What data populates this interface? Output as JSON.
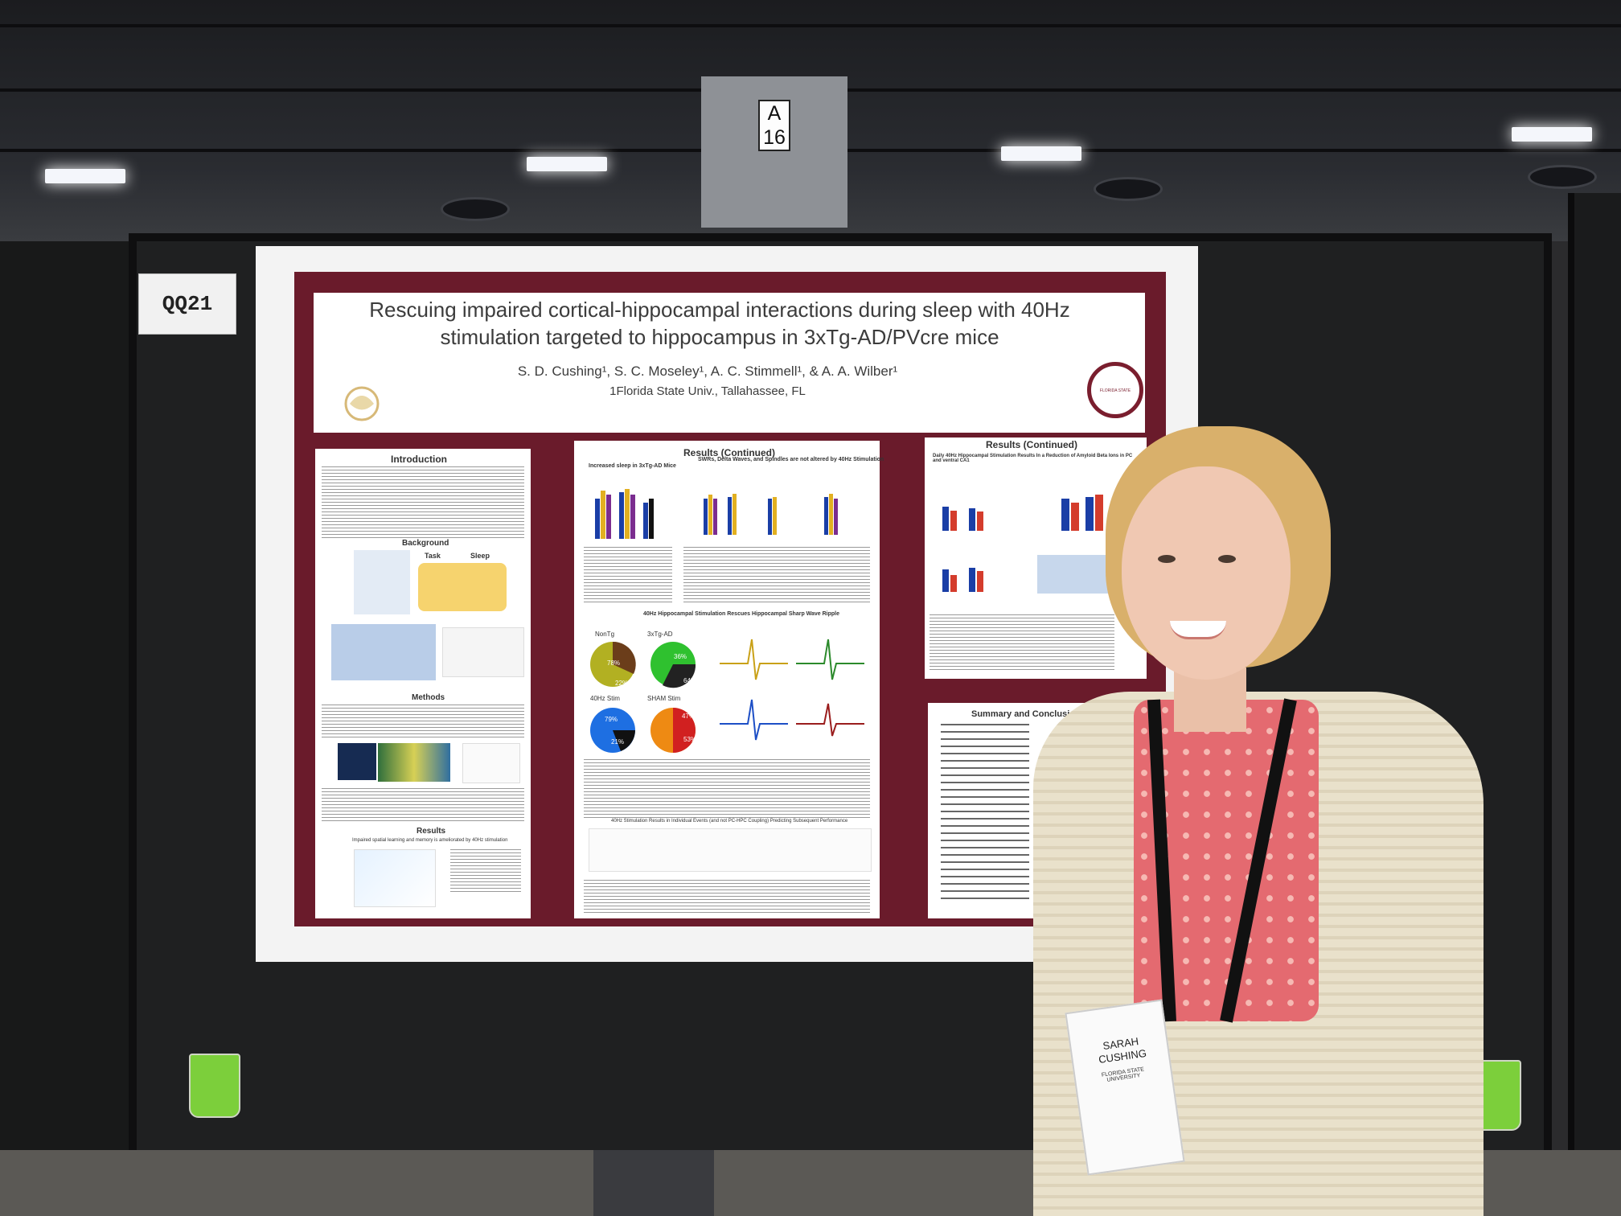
{
  "aisle_sign": {
    "letter": "A",
    "number": "16"
  },
  "booth": {
    "label": "QQ21"
  },
  "poster": {
    "title_line1": "Rescuing impaired cortical-hippocampal interactions during sleep with 40Hz",
    "title_line2": "stimulation targeted to hippocampus in 3xTg-AD/PVcre mice",
    "authors": "S. D. Cushing¹, S. C. Moseley¹, A. C. Stimmell¹, & A. A. Wilber¹",
    "affiliation": "1Florida State Univ., Tallahassee, FL",
    "sections": {
      "introduction": "Introduction",
      "background": "Background",
      "methods": "Methods",
      "results": "Results",
      "results_continued_1": "Results (Continued)",
      "results_continued_2": "Results (Continued)",
      "summary": "Summary and Conclusion"
    },
    "results_subheads": {
      "sleep": "Increased sleep in 3xTg-AD Mice",
      "swr": "SWRs, Delta Waves, and Spindles are not altered by 40Hz Stimulation",
      "stim": "40Hz Hippocampal Stimulation Rescues Hippocampal Sharp Wave Ripple",
      "individual": "40Hz Stimulation Results in Individual Events (and not PC-HPC Coupling) Predicting Subsequent Performance",
      "amyloid": "Daily 40Hz Hippocampal Stimulation Results In a Reduction of Amyloid Beta Ions in PC and ventral CA1",
      "spatial": "Impaired spatial learning and memory is ameliorated by 40Hz stimulation"
    },
    "pie_labels": [
      "NonTg",
      "3xTg-AD",
      "40Hz Stim",
      "SHAM Stim"
    ],
    "pie_values": [
      "78%",
      "22%",
      "36%",
      "64%",
      "79%",
      "21%",
      "47%",
      "53%"
    ],
    "task_labels": {
      "task": "Task",
      "sleep": "Sleep"
    },
    "seal_text": "FLORIDA STATE UNIVERSITY"
  },
  "badge": {
    "name_line1": "SARAH",
    "name_line2": "CUSHING",
    "institution": "FLORIDA STATE UNIVERSITY"
  },
  "colors": {
    "poster_border": "#6a1b2b",
    "board": "#212223",
    "cup": "#7ccf3b"
  }
}
